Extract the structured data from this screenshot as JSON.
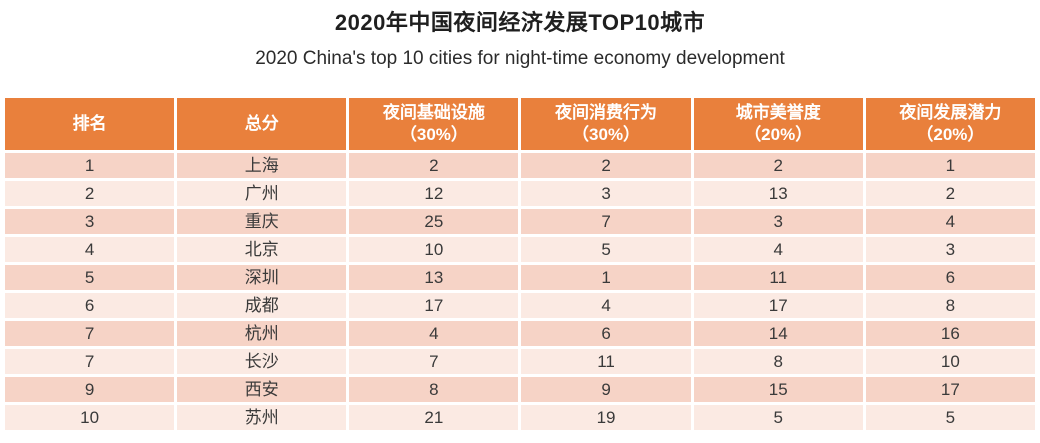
{
  "title": "2020年中国夜间经济发展TOP10城市",
  "subtitle": "2020 China's top 10 cities for night-time economy development",
  "colors": {
    "header_bg": "#E9803C",
    "header_text": "#FFFFFF",
    "row_odd_bg": "#F6D3C6",
    "row_even_bg": "#FBEAE3",
    "body_text": "#3A3A3A",
    "title_text": "#1F1F1F",
    "page_bg": "#FFFFFF"
  },
  "table": {
    "columns": [
      {
        "label": "排名",
        "sub": ""
      },
      {
        "label": "总分",
        "sub": ""
      },
      {
        "label": "夜间基础设施",
        "sub": "（30%）"
      },
      {
        "label": "夜间消费行为",
        "sub": "（30%）"
      },
      {
        "label": "城市美誉度",
        "sub": "（20%）"
      },
      {
        "label": "夜间发展潜力",
        "sub": "（20%）"
      }
    ],
    "rows": [
      [
        "1",
        "上海",
        "2",
        "2",
        "2",
        "1"
      ],
      [
        "2",
        "广州",
        "12",
        "3",
        "13",
        "2"
      ],
      [
        "3",
        "重庆",
        "25",
        "7",
        "3",
        "4"
      ],
      [
        "4",
        "北京",
        "10",
        "5",
        "4",
        "3"
      ],
      [
        "5",
        "深圳",
        "13",
        "1",
        "11",
        "6"
      ],
      [
        "6",
        "成都",
        "17",
        "4",
        "17",
        "8"
      ],
      [
        "7",
        "杭州",
        "4",
        "6",
        "14",
        "16"
      ],
      [
        "7",
        "长沙",
        "7",
        "11",
        "8",
        "10"
      ],
      [
        "9",
        "西安",
        "8",
        "9",
        "15",
        "17"
      ],
      [
        "10",
        "苏州",
        "21",
        "19",
        "5",
        "5"
      ]
    ]
  },
  "chart_data": {
    "type": "table",
    "title": "2020年中国夜间经济发展TOP10城市",
    "subtitle": "2020 China's top 10 cities for night-time economy development",
    "columns": [
      "排名",
      "总分",
      "夜间基础设施（30%）",
      "夜间消费行为（30%）",
      "城市美誉度（20%）",
      "夜间发展潜力（20%）"
    ],
    "rows": [
      [
        1,
        "上海",
        2,
        2,
        2,
        1
      ],
      [
        2,
        "广州",
        12,
        3,
        13,
        2
      ],
      [
        3,
        "重庆",
        25,
        7,
        3,
        4
      ],
      [
        4,
        "北京",
        10,
        5,
        4,
        3
      ],
      [
        5,
        "深圳",
        13,
        1,
        11,
        6
      ],
      [
        6,
        "成都",
        17,
        4,
        17,
        8
      ],
      [
        7,
        "杭州",
        4,
        6,
        14,
        16
      ],
      [
        7,
        "长沙",
        7,
        11,
        8,
        10
      ],
      [
        9,
        "西安",
        8,
        9,
        15,
        17
      ],
      [
        10,
        "苏州",
        21,
        19,
        5,
        5
      ]
    ]
  }
}
